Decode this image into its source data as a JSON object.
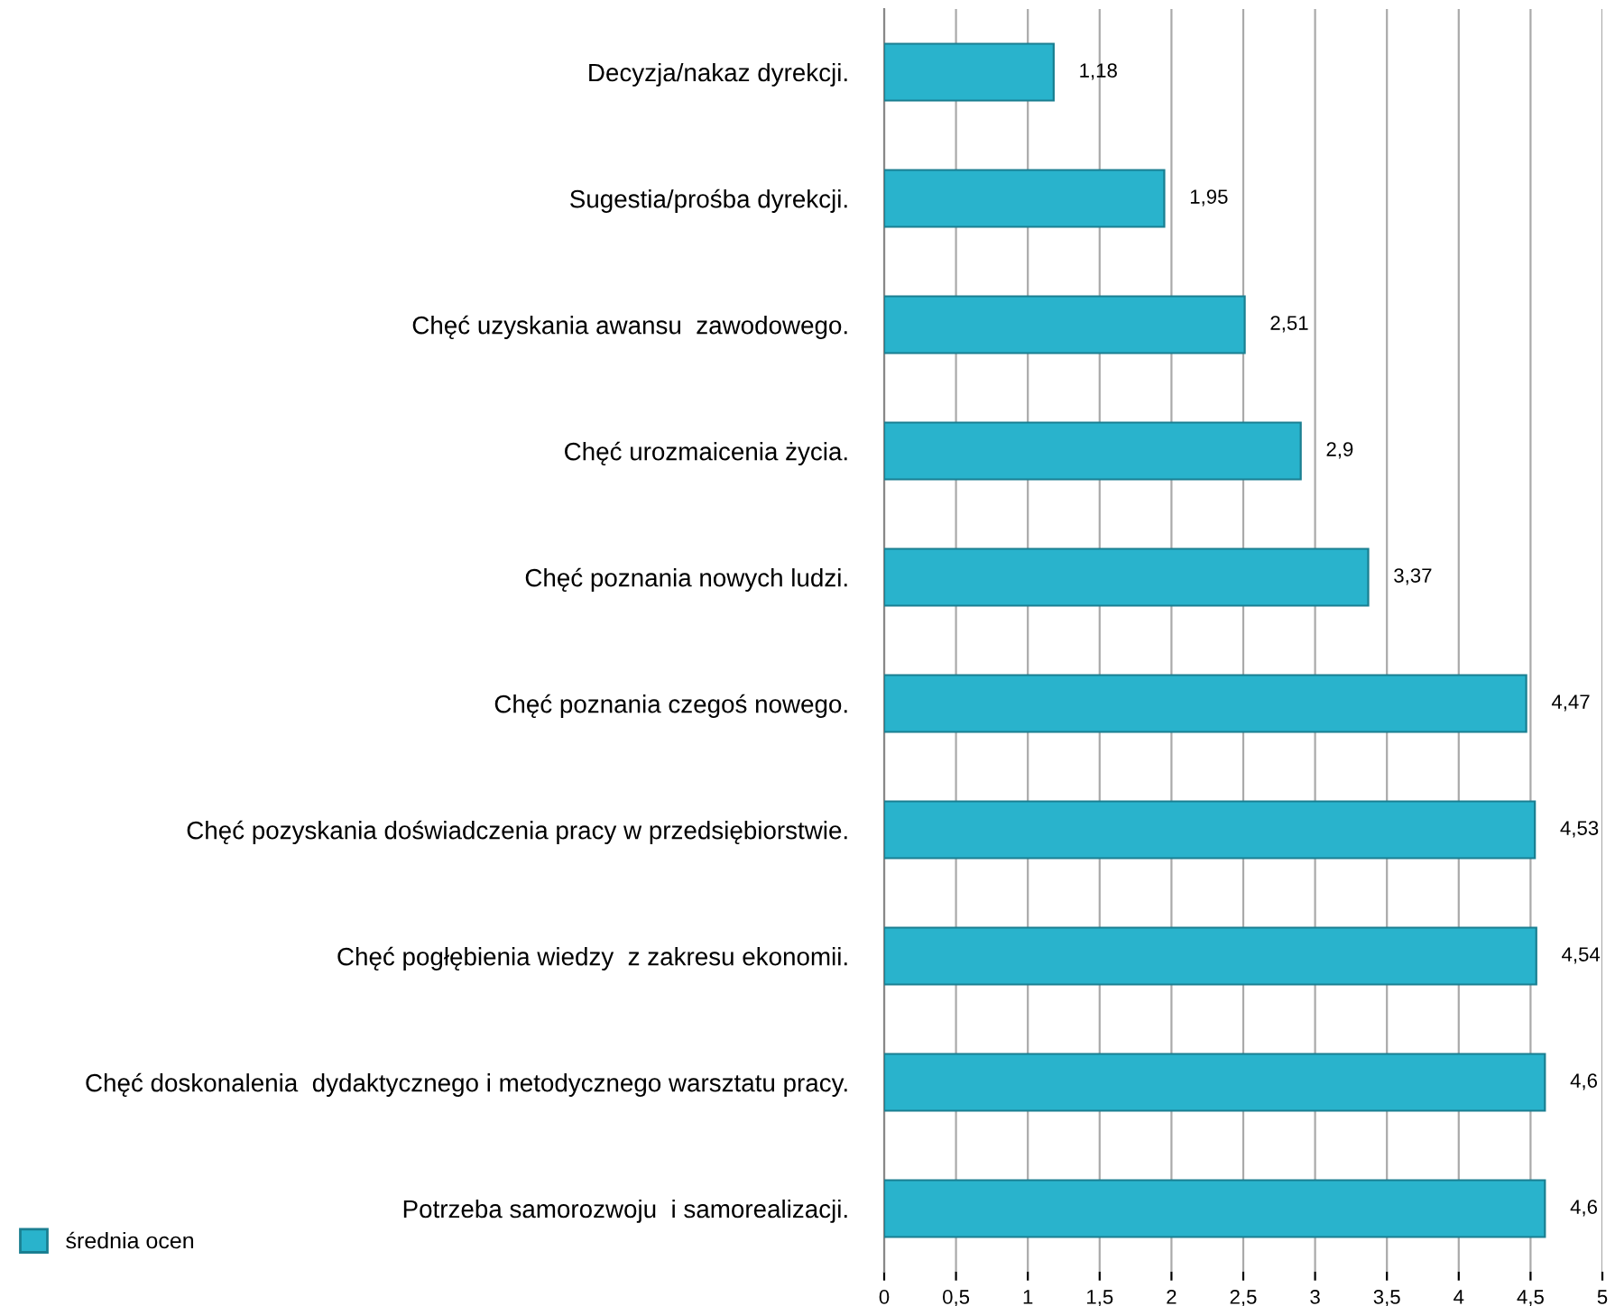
{
  "chart_data": {
    "type": "bar",
    "orientation": "horizontal",
    "categories": [
      "Decyzja/nakaz dyrekcji.",
      "Sugestia/prośba dyrekcji.",
      "Chęć uzyskania awansu  zawodowego.",
      "Chęć urozmaicenia życia.",
      "Chęć poznania nowych ludzi.",
      "Chęć poznania czegoś nowego.",
      "Chęć pozyskania doświadczenia pracy w przedsiębiorstwie.",
      "Chęć pogłębienia wiedzy  z zakresu ekonomii.",
      "Chęć doskonalenia  dydaktycznego i metodycznego warsztatu pracy.",
      "Potrzeba samorozwoju  i samorealizacji."
    ],
    "series": [
      {
        "name": "średnia ocen",
        "color": "#29b3cc",
        "values": [
          1.18,
          1.95,
          2.51,
          2.9,
          3.37,
          4.47,
          4.53,
          4.54,
          4.6,
          4.6
        ],
        "value_labels": [
          "1,18",
          "1,95",
          "2,51",
          "2,9",
          "3,37",
          "4,47",
          "4,53",
          "4,54",
          "4,6",
          "4,6"
        ]
      }
    ],
    "xlim": [
      0,
      5
    ],
    "xticks": [
      0,
      {
        "value": 0.5,
        "label": "0,5"
      },
      1,
      {
        "value": 1.5,
        "label": "1,5"
      },
      2,
      {
        "value": 2.5,
        "label": "2,5"
      },
      3,
      {
        "value": 3.5,
        "label": "3,5"
      },
      4,
      {
        "value": 4.5,
        "label": "4,5"
      },
      5
    ],
    "grid": "x",
    "legend": "bottom left"
  }
}
